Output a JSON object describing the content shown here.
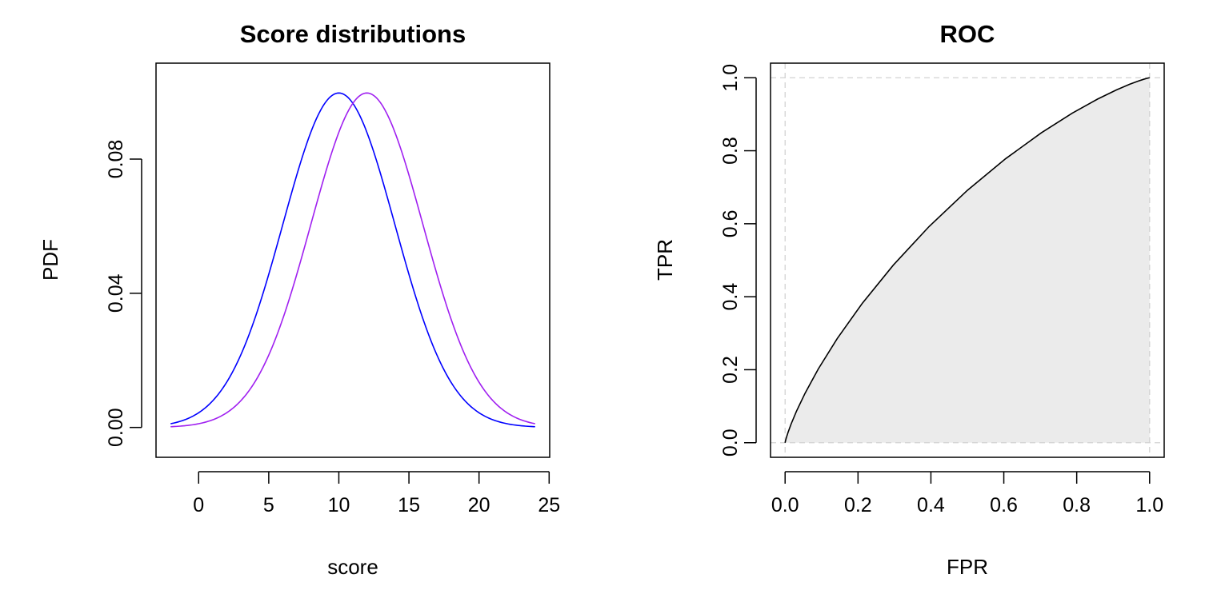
{
  "chart_data": [
    {
      "type": "line",
      "title": "Score distributions",
      "xlabel": "score",
      "ylabel": "PDF",
      "xlim": [
        -3.04,
        25.04
      ],
      "ylim": [
        -0.0089,
        0.1086
      ],
      "xticks": [
        0,
        5,
        10,
        15,
        20,
        25
      ],
      "xtick_labels": [
        "0",
        "5",
        "10",
        "15",
        "20",
        "25"
      ],
      "yticks": [
        0.0,
        0.04,
        0.08
      ],
      "ytick_labels": [
        "0.00",
        "0.04",
        "0.08"
      ],
      "grid": false,
      "series": [
        {
          "color": "#0000FF",
          "distribution": "normal",
          "mean": 10,
          "sd": 4,
          "peak": 0.0997,
          "x": [
            -2,
            0,
            2,
            4,
            6,
            8,
            10,
            12,
            14,
            16,
            18,
            20,
            22,
            24
          ],
          "values": [
            0.0011,
            0.0044,
            0.0135,
            0.0324,
            0.0605,
            0.088,
            0.0997,
            0.088,
            0.0605,
            0.0324,
            0.0135,
            0.0044,
            0.0011,
            0.0002
          ]
        },
        {
          "color": "#A020F0",
          "distribution": "normal",
          "mean": 12,
          "sd": 4,
          "peak": 0.0997,
          "x": [
            -2,
            0,
            2,
            4,
            6,
            8,
            10,
            12,
            14,
            16,
            18,
            20,
            22,
            24
          ],
          "values": [
            0.0002,
            0.0011,
            0.0044,
            0.0135,
            0.0324,
            0.0605,
            0.088,
            0.0997,
            0.088,
            0.0605,
            0.0324,
            0.0135,
            0.0044,
            0.0011
          ]
        }
      ]
    },
    {
      "type": "area",
      "title": "ROC",
      "xlabel": "FPR",
      "ylabel": "TPR",
      "xlim": [
        -0.04,
        1.04
      ],
      "ylim": [
        -0.04,
        1.04
      ],
      "xticks": [
        0.0,
        0.2,
        0.4,
        0.6,
        0.8,
        1.0
      ],
      "xtick_labels": [
        "0.0",
        "0.2",
        "0.4",
        "0.6",
        "0.8",
        "1.0"
      ],
      "yticks": [
        0.0,
        0.2,
        0.4,
        0.6,
        0.8,
        1.0
      ],
      "ytick_labels": [
        "0.0",
        "0.2",
        "0.4",
        "0.6",
        "0.8",
        "1.0"
      ],
      "reference_lines": {
        "x": [
          0,
          1
        ],
        "y": [
          0,
          1
        ],
        "style": "dashed",
        "color": "#D3D3D3"
      },
      "fill_color": "#EBEBEB",
      "line_color": "#000000",
      "x": [
        0,
        0.02,
        0.05,
        0.1,
        0.2,
        0.3,
        0.4,
        0.5,
        0.6,
        0.7,
        0.8,
        0.9,
        1.0
      ],
      "values": [
        0,
        0.07,
        0.14,
        0.23,
        0.37,
        0.49,
        0.59,
        0.69,
        0.77,
        0.85,
        0.91,
        0.96,
        1.0
      ]
    }
  ]
}
